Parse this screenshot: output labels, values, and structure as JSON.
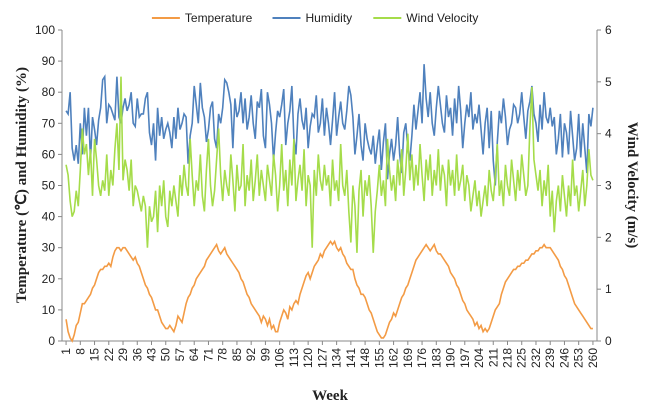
{
  "chart_data": {
    "type": "line",
    "xlabel": "Week",
    "ylabel": "Temperature (℃) and Humidity (%)",
    "y2label": "Wind Velocity (m/s)",
    "legend": "top",
    "grid": false,
    "xlim": [
      -1,
      262
    ],
    "xticks": [
      1,
      8,
      15,
      22,
      29,
      36,
      43,
      50,
      57,
      64,
      71,
      78,
      85,
      92,
      99,
      106,
      113,
      120,
      127,
      134,
      141,
      148,
      155,
      162,
      169,
      176,
      183,
      190,
      197,
      204,
      211,
      218,
      225,
      232,
      239,
      246,
      253,
      260
    ],
    "ylim": [
      0,
      100
    ],
    "yticks": [
      0,
      10,
      20,
      30,
      40,
      50,
      60,
      70,
      80,
      90,
      100
    ],
    "y2lim": [
      0,
      6
    ],
    "y2ticks": [
      0,
      1,
      2,
      3,
      4,
      5,
      6
    ],
    "x": [
      1,
      2,
      3,
      4,
      5,
      6,
      7,
      8,
      9,
      10,
      11,
      12,
      13,
      14,
      15,
      16,
      17,
      18,
      19,
      20,
      21,
      22,
      23,
      24,
      25,
      26,
      27,
      28,
      29,
      30,
      31,
      32,
      33,
      34,
      35,
      36,
      37,
      38,
      39,
      40,
      41,
      42,
      43,
      44,
      45,
      46,
      47,
      48,
      49,
      50,
      51,
      52,
      53,
      54,
      55,
      56,
      57,
      58,
      59,
      60,
      61,
      62,
      63,
      64,
      65,
      66,
      67,
      68,
      69,
      70,
      71,
      72,
      73,
      74,
      75,
      76,
      77,
      78,
      79,
      80,
      81,
      82,
      83,
      84,
      85,
      86,
      87,
      88,
      89,
      90,
      91,
      92,
      93,
      94,
      95,
      96,
      97,
      98,
      99,
      100,
      101,
      102,
      103,
      104,
      105,
      106,
      107,
      108,
      109,
      110,
      111,
      112,
      113,
      114,
      115,
      116,
      117,
      118,
      119,
      120,
      121,
      122,
      123,
      124,
      125,
      126,
      127,
      128,
      129,
      130,
      131,
      132,
      133,
      134,
      135,
      136,
      137,
      138,
      139,
      140,
      141,
      142,
      143,
      144,
      145,
      146,
      147,
      148,
      149,
      150,
      151,
      152,
      153,
      154,
      155,
      156,
      157,
      158,
      159,
      160,
      161,
      162,
      163,
      164,
      165,
      166,
      167,
      168,
      169,
      170,
      171,
      172,
      173,
      174,
      175,
      176,
      177,
      178,
      179,
      180,
      181,
      182,
      183,
      184,
      185,
      186,
      187,
      188,
      189,
      190,
      191,
      192,
      193,
      194,
      195,
      196,
      197,
      198,
      199,
      200,
      201,
      202,
      203,
      204,
      205,
      206,
      207,
      208,
      209,
      210,
      211,
      212,
      213,
      214,
      215,
      216,
      217,
      218,
      219,
      220,
      221,
      222,
      223,
      224,
      225,
      226,
      227,
      228,
      229,
      230,
      231,
      232,
      233,
      234,
      235,
      236,
      237,
      238,
      239,
      240,
      241,
      242,
      243,
      244,
      245,
      246,
      247,
      248,
      249,
      250,
      251,
      252,
      253,
      254,
      255,
      256,
      257,
      258,
      259,
      260
    ],
    "series": [
      {
        "name": "Temperature",
        "color": "#f39b45",
        "axis": "y",
        "values": [
          7,
          3,
          1,
          0,
          2,
          5,
          6,
          9,
          12,
          12,
          13,
          14,
          15,
          17,
          18,
          20,
          22,
          23,
          23,
          24,
          24,
          25,
          24,
          27,
          29,
          30,
          30,
          29,
          30,
          30,
          29,
          28,
          27,
          26,
          27,
          25,
          24,
          22,
          20,
          18,
          17,
          15,
          14,
          12,
          10,
          10,
          8,
          6,
          5,
          4,
          4,
          5,
          4,
          3,
          5,
          8,
          7,
          6,
          9,
          12,
          14,
          15,
          17,
          18,
          20,
          21,
          22,
          23,
          24,
          26,
          27,
          28,
          29,
          30,
          31,
          29,
          28,
          29,
          30,
          28,
          27,
          26,
          25,
          24,
          23,
          22,
          20,
          19,
          17,
          15,
          14,
          12,
          11,
          10,
          9,
          8,
          6,
          8,
          7,
          5,
          7,
          4,
          5,
          3,
          3,
          6,
          8,
          10,
          9,
          7,
          11,
          10,
          12,
          13,
          12,
          15,
          17,
          19,
          21,
          22,
          20,
          22,
          24,
          25,
          26,
          28,
          27,
          29,
          30,
          31,
          32,
          31,
          32,
          30,
          29,
          30,
          28,
          27,
          25,
          24,
          23,
          23,
          20,
          18,
          17,
          15,
          15,
          14,
          12,
          10,
          9,
          7,
          5,
          3,
          2,
          1,
          1,
          2,
          4,
          6,
          7,
          9,
          8,
          10,
          12,
          14,
          15,
          17,
          18,
          20,
          22,
          24,
          26,
          27,
          28,
          29,
          30,
          31,
          30,
          29,
          30,
          31,
          29,
          28,
          28,
          27,
          26,
          25,
          24,
          22,
          21,
          20,
          18,
          17,
          15,
          13,
          12,
          10,
          9,
          8,
          7,
          5,
          6,
          4,
          5,
          3,
          4,
          3,
          4,
          6,
          8,
          10,
          11,
          12,
          15,
          17,
          19,
          20,
          21,
          22,
          23,
          23,
          24,
          24,
          25,
          25,
          26,
          26,
          27,
          28,
          28,
          29,
          29,
          30,
          30,
          31,
          30,
          30,
          30,
          29,
          28,
          27,
          26,
          24,
          23,
          21,
          20,
          18,
          16,
          14,
          12,
          11,
          10,
          9,
          8,
          7,
          6,
          5,
          4,
          4
        ]
      },
      {
        "name": "Humidity",
        "color": "#4f81bd",
        "axis": "y",
        "values": [
          74,
          73,
          80,
          62,
          58,
          63,
          57,
          70,
          60,
          75,
          66,
          75,
          58,
          72,
          68,
          63,
          71,
          75,
          84,
          85,
          70,
          76,
          75,
          73,
          71,
          85,
          72,
          70,
          75,
          78,
          74,
          76,
          80,
          70,
          69,
          78,
          72,
          73,
          73,
          78,
          80,
          67,
          63,
          70,
          58,
          75,
          66,
          72,
          65,
          68,
          70,
          67,
          62,
          72,
          65,
          75,
          68,
          70,
          73,
          72,
          57,
          66,
          70,
          82,
          76,
          70,
          83,
          75,
          72,
          64,
          68,
          75,
          77,
          65,
          62,
          73,
          70,
          75,
          84,
          83,
          80,
          76,
          62,
          78,
          72,
          74,
          80,
          70,
          78,
          68,
          72,
          79,
          70,
          65,
          77,
          75,
          81,
          66,
          62,
          80,
          76,
          70,
          58,
          67,
          74,
          72,
          76,
          81,
          63,
          70,
          74,
          82,
          65,
          60,
          73,
          78,
          71,
          68,
          75,
          62,
          69,
          73,
          72,
          79,
          67,
          70,
          78,
          66,
          75,
          70,
          63,
          71,
          80,
          66,
          72,
          77,
          70,
          68,
          74,
          82,
          79,
          72,
          60,
          66,
          73,
          63,
          58,
          70,
          65,
          62,
          60,
          66,
          57,
          63,
          68,
          55,
          64,
          70,
          52,
          60,
          65,
          58,
          63,
          72,
          60,
          54,
          67,
          70,
          62,
          58,
          66,
          76,
          68,
          74,
          80,
          70,
          89,
          78,
          72,
          80,
          70,
          66,
          75,
          82,
          76,
          70,
          67,
          79,
          72,
          75,
          66,
          78,
          70,
          82,
          74,
          62,
          70,
          76,
          72,
          80,
          68,
          73,
          70,
          76,
          68,
          60,
          70,
          75,
          62,
          74,
          58,
          50,
          64,
          74,
          70,
          78,
          72,
          63,
          68,
          70,
          76,
          75,
          70,
          73,
          80,
          72,
          65,
          74,
          77,
          82,
          73,
          70,
          64,
          76,
          68,
          80,
          72,
          70,
          75,
          69,
          72,
          60,
          65,
          73,
          59,
          70,
          67,
          60,
          74,
          66,
          58,
          62,
          73,
          59,
          70,
          62,
          54,
          73,
          69,
          75
        ]
      },
      {
        "name": "Wind Velocity",
        "color": "#a5dc4a",
        "axis": "y2",
        "values": [
          3.4,
          3.2,
          2.7,
          2.4,
          2.5,
          2.9,
          2.6,
          3.3,
          4.1,
          3.6,
          3.8,
          3.2,
          3.7,
          2.8,
          3.9,
          3.5,
          3.0,
          2.8,
          3.1,
          2.9,
          3.6,
          2.8,
          3.3,
          3.0,
          3.7,
          4.2,
          3.3,
          5.1,
          3.1,
          3.5,
          3.3,
          2.9,
          3.5,
          2.6,
          3.0,
          2.9,
          2.7,
          2.5,
          2.8,
          2.6,
          1.8,
          2.6,
          2.3,
          2.4,
          2.9,
          2.1,
          3.0,
          2.6,
          3.1,
          2.4,
          2.2,
          2.9,
          2.6,
          3.0,
          2.7,
          2.4,
          3.2,
          2.8,
          3.4,
          3.0,
          2.8,
          3.9,
          3.2,
          2.6,
          3.1,
          2.9,
          3.6,
          2.8,
          2.5,
          3.3,
          3.9,
          3.0,
          2.6,
          2.9,
          3.5,
          4.1,
          3.2,
          2.7,
          3.3,
          3.0,
          2.8,
          3.6,
          3.1,
          2.5,
          3.4,
          2.9,
          3.0,
          3.8,
          2.6,
          3.2,
          2.9,
          3.5,
          2.7,
          3.1,
          3.6,
          2.8,
          3.3,
          3.0,
          2.7,
          3.4,
          3.1,
          2.8,
          3.6,
          3.2,
          2.5,
          3.0,
          3.8,
          2.9,
          3.3,
          2.6,
          3.5,
          3.0,
          3.9,
          2.7,
          3.1,
          3.4,
          2.9,
          3.7,
          2.6,
          3.2,
          3.0,
          1.8,
          3.3,
          2.8,
          3.6,
          3.1,
          2.9,
          3.4,
          3.0,
          3.2,
          2.6,
          3.5,
          2.9,
          3.1,
          2.7,
          3.8,
          3.0,
          2.8,
          3.3,
          2.5,
          1.9,
          3.0,
          2.6,
          1.7,
          2.9,
          3.3,
          2.4,
          3.1,
          2.8,
          3.2,
          2.6,
          1.7,
          2.5,
          2.9,
          3.4,
          2.8,
          3.1,
          2.6,
          3.9,
          3.3,
          2.9,
          3.2,
          2.7,
          3.5,
          3.0,
          3.7,
          2.8,
          3.3,
          4.0,
          3.1,
          3.6,
          2.9,
          3.4,
          3.0,
          3.8,
          3.2,
          2.7,
          3.5,
          3.1,
          3.6,
          2.8,
          3.3,
          3.0,
          3.7,
          2.9,
          3.4,
          3.2,
          2.6,
          3.5,
          3.0,
          3.3,
          2.8,
          3.6,
          2.9,
          3.1,
          3.4,
          2.7,
          3.2,
          3.0,
          2.5,
          2.8,
          3.1,
          2.6,
          2.9,
          2.4,
          2.7,
          3.0,
          2.6,
          3.3,
          2.9,
          2.7,
          3.2,
          3.8,
          2.8,
          3.1,
          2.6,
          3.4,
          3.0,
          2.8,
          3.5,
          3.1,
          2.7,
          3.3,
          2.9,
          3.6,
          3.2,
          2.8,
          3.0,
          4.1,
          4.9,
          3.5,
          3.2,
          2.9,
          3.3,
          2.6,
          3.1,
          2.8,
          3.4,
          2.4,
          2.9,
          2.1,
          2.7,
          3.0,
          2.5,
          3.2,
          2.8,
          2.4,
          3.0,
          2.6,
          3.5,
          2.8,
          3.0,
          2.5,
          2.9,
          3.3,
          2.6,
          3.0,
          3.7,
          3.2,
          3.1
        ]
      }
    ]
  }
}
